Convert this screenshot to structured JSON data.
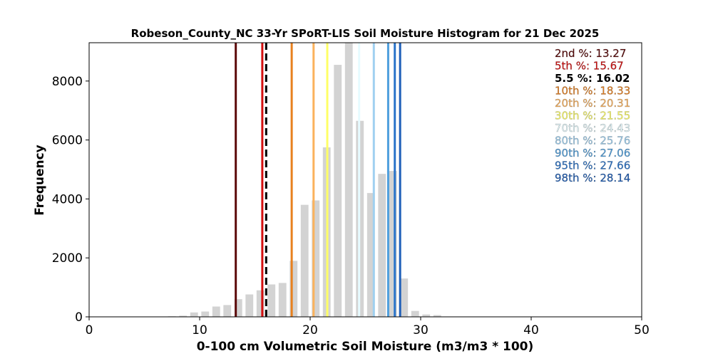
{
  "chart_data": {
    "type": "bar",
    "title": "Robeson_County_NC 33-Yr SPoRT-LIS Soil Moisture Histogram for 21 Dec 2025",
    "xlabel": "0-100 cm Volumetric Soil Moisture (m3/m3 * 100)",
    "ylabel": "Frequency",
    "xlim": [
      0,
      50
    ],
    "ylim": [
      0,
      9300
    ],
    "xticks": [
      0,
      10,
      20,
      30,
      40,
      50
    ],
    "yticks": [
      0,
      2000,
      4000,
      6000,
      8000
    ],
    "bar_width": 0.7,
    "bar_color": "#d3d3d3",
    "bins": [
      {
        "x": 7.5,
        "count": 20
      },
      {
        "x": 8.5,
        "count": 40
      },
      {
        "x": 9.5,
        "count": 150
      },
      {
        "x": 10.5,
        "count": 180
      },
      {
        "x": 11.5,
        "count": 350
      },
      {
        "x": 12.5,
        "count": 400
      },
      {
        "x": 13.5,
        "count": 600
      },
      {
        "x": 14.5,
        "count": 760
      },
      {
        "x": 15.5,
        "count": 900
      },
      {
        "x": 16.5,
        "count": 1100
      },
      {
        "x": 17.5,
        "count": 1150
      },
      {
        "x": 18.5,
        "count": 1900
      },
      {
        "x": 19.5,
        "count": 3800
      },
      {
        "x": 20.5,
        "count": 3950
      },
      {
        "x": 21.5,
        "count": 5750
      },
      {
        "x": 22.5,
        "count": 8550
      },
      {
        "x": 23.5,
        "count": 9300
      },
      {
        "x": 24.5,
        "count": 6650
      },
      {
        "x": 25.5,
        "count": 4200
      },
      {
        "x": 26.5,
        "count": 4850
      },
      {
        "x": 27.5,
        "count": 4950
      },
      {
        "x": 28.5,
        "count": 1300
      },
      {
        "x": 29.5,
        "count": 200
      },
      {
        "x": 30.5,
        "count": 80
      },
      {
        "x": 31.5,
        "count": 60
      }
    ],
    "percentiles": [
      {
        "label": "2nd %: 13.27",
        "value": 13.27,
        "color": "#5c0a0a",
        "dashed": false
      },
      {
        "label": "5th %: 15.67",
        "value": 15.67,
        "color": "#d40f0f",
        "dashed": false
      },
      {
        "label": "5.5 %: 16.02",
        "value": 16.02,
        "color": "#000000",
        "dashed": true
      },
      {
        "label": "10th %: 18.33",
        "value": 18.33,
        "color": "#e8801e",
        "dashed": false
      },
      {
        "label": "20th %: 20.31",
        "value": 20.31,
        "color": "#fbb25c",
        "dashed": false
      },
      {
        "label": "30th %: 21.55",
        "value": 21.55,
        "color": "#ffff66",
        "dashed": false
      },
      {
        "label": "70th %: 24.43",
        "value": 24.43,
        "color": "#e6fbff",
        "dashed": false
      },
      {
        "label": "80th %: 25.76",
        "value": 25.76,
        "color": "#9fd0f0",
        "dashed": false
      },
      {
        "label": "90th %: 27.06",
        "value": 27.06,
        "color": "#4f9fdd",
        "dashed": false
      },
      {
        "label": "95th %: 27.66",
        "value": 27.66,
        "color": "#2a73c9",
        "dashed": false
      },
      {
        "label": "98th %: 28.14",
        "value": 28.14,
        "color": "#1f5fb8",
        "dashed": false
      }
    ]
  }
}
